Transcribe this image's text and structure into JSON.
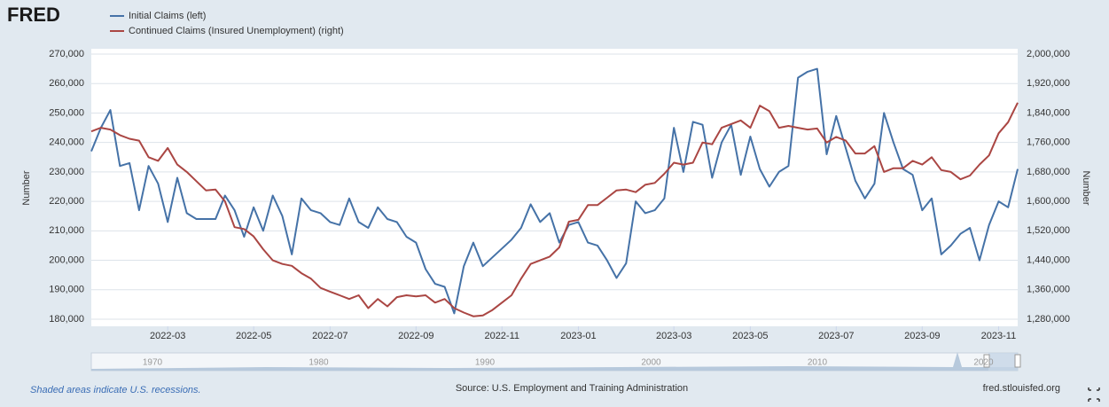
{
  "logo": "FRED",
  "chart_data": {
    "type": "line",
    "categories": [
      null,
      null,
      null,
      null,
      null,
      null,
      null,
      null,
      "2022-03",
      null,
      null,
      null,
      null,
      null,
      null,
      null,
      null,
      "2022-05",
      null,
      null,
      null,
      null,
      null,
      null,
      null,
      "2022-07",
      null,
      null,
      null,
      null,
      null,
      null,
      null,
      null,
      "2022-09",
      null,
      null,
      null,
      null,
      null,
      null,
      null,
      null,
      "2022-11",
      null,
      null,
      null,
      null,
      null,
      null,
      null,
      "2023-01",
      null,
      null,
      null,
      null,
      null,
      null,
      null,
      null,
      null,
      "2023-03",
      null,
      null,
      null,
      null,
      null,
      null,
      null,
      "2023-05",
      null,
      null,
      null,
      null,
      null,
      null,
      null,
      null,
      "2023-07",
      null,
      null,
      null,
      null,
      null,
      null,
      null,
      null,
      "2023-09",
      null,
      null,
      null,
      null,
      null,
      null,
      null,
      "2023-11",
      null,
      null
    ],
    "series": [
      {
        "name": "Initial Claims (left)",
        "color": "#4572a7",
        "values": [
          237000,
          245000,
          251000,
          232000,
          233000,
          217000,
          232000,
          226000,
          213000,
          228000,
          216000,
          214000,
          214000,
          214000,
          222000,
          217000,
          208000,
          218000,
          210000,
          222000,
          215000,
          202000,
          221000,
          217000,
          216000,
          213000,
          212000,
          221000,
          213000,
          211000,
          218000,
          214000,
          213000,
          208000,
          206000,
          197000,
          192000,
          191000,
          182000,
          198000,
          206000,
          198000,
          201000,
          204000,
          207000,
          211000,
          219000,
          213000,
          216000,
          206000,
          212000,
          213000,
          206000,
          205000,
          200000,
          194000,
          199000,
          220000,
          216000,
          217000,
          221000,
          245000,
          230000,
          247000,
          246000,
          228000,
          240000,
          246000,
          229000,
          242000,
          231000,
          225000,
          230000,
          232000,
          262000,
          264000,
          265000,
          236000,
          249000,
          238000,
          227000,
          221000,
          226000,
          250000,
          240000,
          231000,
          229000,
          217000,
          221000,
          202000,
          205000,
          209000,
          211000,
          200000,
          212000,
          220000,
          218000,
          231000
        ]
      },
      {
        "name": "Continued Claims (Insured Unemployment) (right)",
        "color": "#aa4643",
        "axis": "y2",
        "values": [
          1790000,
          1800000,
          1795000,
          1780000,
          1770000,
          1765000,
          1720000,
          1710000,
          1745000,
          1700000,
          1680000,
          1655000,
          1630000,
          1632000,
          1600000,
          1530000,
          1525000,
          1505000,
          1470000,
          1440000,
          1430000,
          1425000,
          1405000,
          1390000,
          1365000,
          1355000,
          1345000,
          1335000,
          1345000,
          1310000,
          1335000,
          1315000,
          1340000,
          1345000,
          1342000,
          1345000,
          1325000,
          1335000,
          1310000,
          1298000,
          1288000,
          1290000,
          1305000,
          1325000,
          1345000,
          1390000,
          1430000,
          1440000,
          1450000,
          1475000,
          1545000,
          1550000,
          1590000,
          1590000,
          1610000,
          1630000,
          1632000,
          1625000,
          1645000,
          1650000,
          1675000,
          1705000,
          1700000,
          1705000,
          1760000,
          1755000,
          1800000,
          1810000,
          1820000,
          1800000,
          1860000,
          1845000,
          1800000,
          1805000,
          1800000,
          1795000,
          1798000,
          1760000,
          1775000,
          1765000,
          1730000,
          1730000,
          1750000,
          1680000,
          1690000,
          1690000,
          1710000,
          1700000,
          1720000,
          1685000,
          1680000,
          1660000,
          1670000,
          1700000,
          1725000,
          1785000,
          1815000,
          1868000
        ]
      }
    ],
    "ylabel": "Number",
    "y2label": "Number",
    "ylim": [
      180000,
      270000
    ],
    "yticks": [
      {
        "value": 180000,
        "label": "180,000"
      },
      {
        "value": 190000,
        "label": "190,000"
      },
      {
        "value": 200000,
        "label": "200,000"
      },
      {
        "value": 210000,
        "label": "210,000"
      },
      {
        "value": 220000,
        "label": "220,000"
      },
      {
        "value": 230000,
        "label": "230,000"
      },
      {
        "value": 240000,
        "label": "240,000"
      },
      {
        "value": 250000,
        "label": "250,000"
      },
      {
        "value": 260000,
        "label": "260,000"
      },
      {
        "value": 270000,
        "label": "270,000"
      }
    ],
    "y2lim": [
      1280000,
      2000000
    ],
    "y2ticks": [
      {
        "value": 1280000,
        "label": "1,280,000"
      },
      {
        "value": 1360000,
        "label": "1,360,000"
      },
      {
        "value": 1440000,
        "label": "1,440,000"
      },
      {
        "value": 1520000,
        "label": "1,520,000"
      },
      {
        "value": 1600000,
        "label": "1,600,000"
      },
      {
        "value": 1680000,
        "label": "1,680,000"
      },
      {
        "value": 1760000,
        "label": "1,760,000"
      },
      {
        "value": 1840000,
        "label": "1,840,000"
      },
      {
        "value": 1920000,
        "label": "1,920,000"
      },
      {
        "value": 2000000,
        "label": "2,000,000"
      }
    ],
    "grid": true
  },
  "navigator": {
    "labels": [
      "1970",
      "1980",
      "1990",
      "2000",
      "2010",
      "2020"
    ]
  },
  "footer": {
    "note": "Shaded areas indicate U.S. recessions.",
    "source": "Source: U.S. Employment and Training Administration",
    "site": "fred.stlouisfed.org"
  }
}
